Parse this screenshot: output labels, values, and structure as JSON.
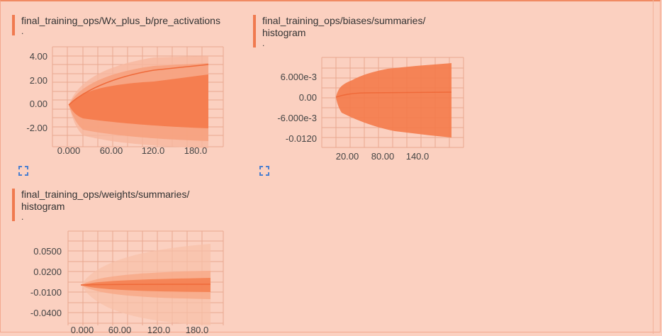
{
  "cards": [
    {
      "title_lines": [
        "final_training_ops/Wx_plus_b/pre_activations"
      ],
      "subtitle": ".",
      "chart_data": {
        "type": "area",
        "y_ticks": [
          "4.00",
          "2.00",
          "0.00",
          "-2.00"
        ],
        "x_ticks": [
          "0.000",
          "60.00",
          "120.0",
          "180.0"
        ],
        "x_range": [
          0,
          200
        ],
        "y_range": [
          -2.7,
          4.0
        ]
      }
    },
    {
      "title_lines": [
        "final_training_ops/biases/summaries/",
        "histogram"
      ],
      "subtitle": ".",
      "chart_data": {
        "type": "area",
        "y_ticks": [
          "6.000e-3",
          "0.00",
          "-6.000e-3",
          "-0.0120"
        ],
        "x_ticks": [
          "20.00",
          "80.00",
          "140.0"
        ],
        "x_range": [
          0,
          200
        ],
        "y_range": [
          -0.013,
          0.011
        ]
      }
    },
    {
      "title_lines": [
        "final_training_ops/weights/summaries/",
        "histogram"
      ],
      "subtitle": ".",
      "chart_data": {
        "type": "area",
        "y_ticks": [
          "0.0500",
          "0.0200",
          "-0.0100",
          "-0.0400"
        ],
        "x_ticks": [
          "0.000",
          "60.00",
          "120.0",
          "180.0"
        ],
        "x_range": [
          0,
          200
        ],
        "y_range": [
          -0.05,
          0.06
        ]
      }
    }
  ],
  "colors": {
    "band_dark": "#f47a4a",
    "band_light": "#f8b79d",
    "grid": "#e8a890",
    "accent": "#f07a4f",
    "expand_icon": "#4a7fd0"
  },
  "icons": {
    "expand": "fullscreen-expand-icon"
  }
}
